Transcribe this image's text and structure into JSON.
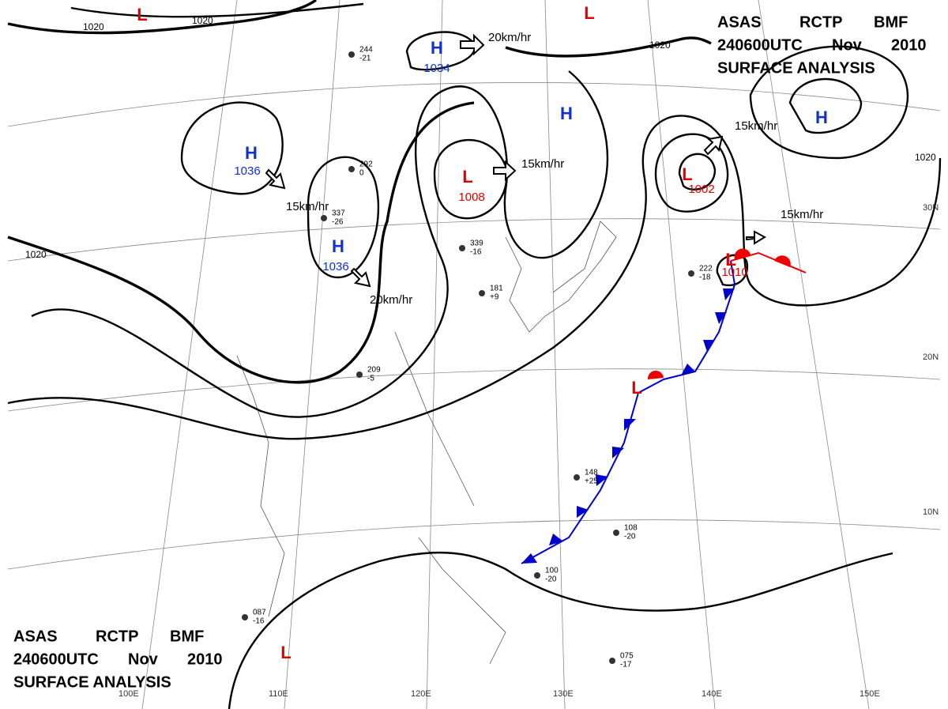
{
  "header": {
    "lines": [
      "ASAS",
      "RCTP",
      "BMF",
      "240600UTC",
      "Nov",
      "2010",
      "SURFACE ANALYSIS"
    ]
  },
  "pressure_centers": [
    {
      "symbol": "H",
      "value": 1034
    },
    {
      "symbol": "H",
      "value": 1036
    },
    {
      "symbol": "H",
      "value": 1036
    },
    {
      "symbol": "L",
      "value": 1008
    },
    {
      "symbol": "L",
      "value": 1002
    },
    {
      "symbol": "L",
      "value": 1010
    },
    {
      "symbol": "L"
    },
    {
      "symbol": "L"
    },
    {
      "symbol": "H"
    },
    {
      "symbol": "H"
    },
    {
      "symbol": "L"
    },
    {
      "symbol": "L"
    }
  ],
  "motion_labels": [
    "20km/hr",
    "15km/hr",
    "15km/hr",
    "20km/hr",
    "15km/hr",
    "15km/hr"
  ],
  "isobar_labels": [
    1020,
    1020,
    1020,
    1020,
    1020
  ],
  "grid_labels": [
    "100E",
    "110E",
    "120E",
    "130E",
    "140E",
    "150E",
    "10N",
    "20N",
    "30N"
  ],
  "stations": [
    {
      "pressure": "244",
      "tendency": "-21"
    },
    {
      "pressure": "292",
      "tendency": "0"
    },
    {
      "pressure": "337",
      "tendency": "-26"
    },
    {
      "pressure": "339",
      "tendency": "-16"
    },
    {
      "pressure": "181",
      "tendency": "+9"
    },
    {
      "pressure": "209",
      "tendency": "-5"
    },
    {
      "pressure": "222",
      "tendency": "-18"
    },
    {
      "pressure": "148",
      "tendency": "+25"
    },
    {
      "pressure": "108",
      "tendency": "-20"
    },
    {
      "pressure": "100",
      "tendency": "-20"
    },
    {
      "pressure": "087",
      "tendency": "-16"
    },
    {
      "pressure": "075",
      "tendency": "-17"
    }
  ]
}
